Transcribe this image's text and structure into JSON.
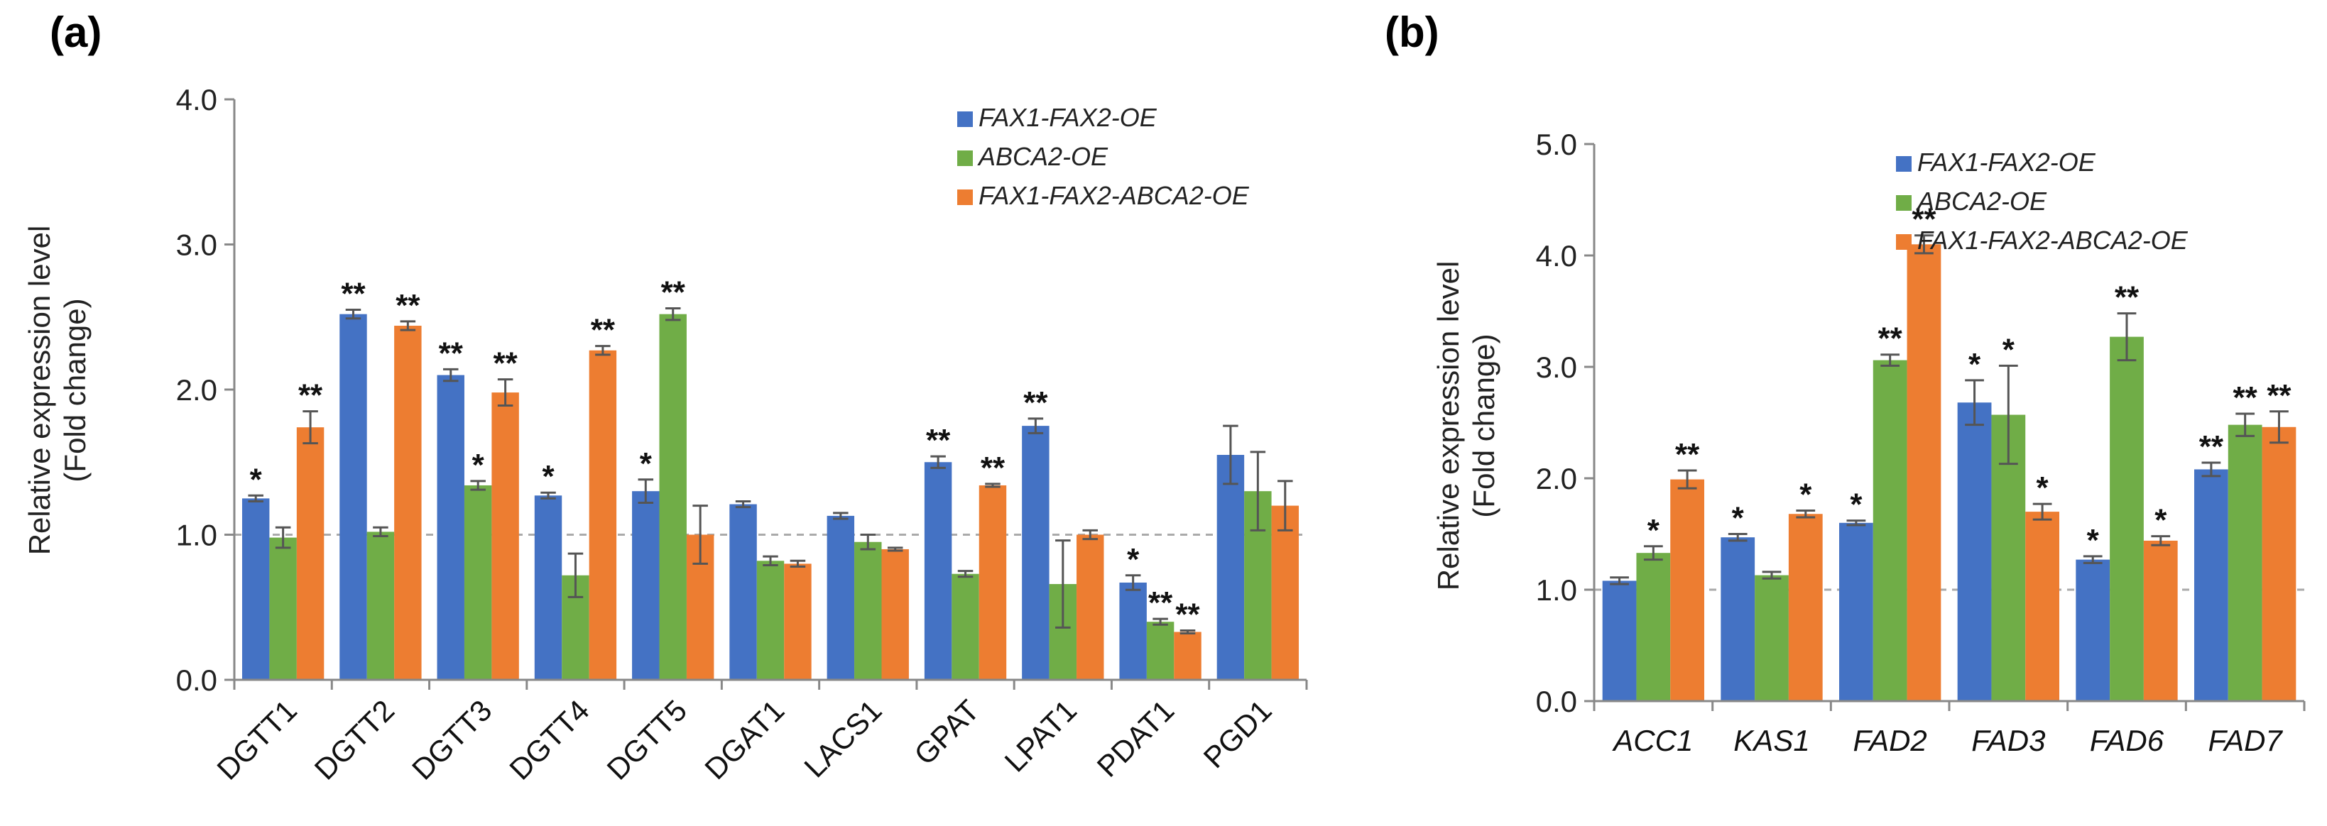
{
  "chart_data": [
    {
      "panel_label": "(a)",
      "type": "bar",
      "ylabel_lines": [
        "Relative expression level",
        "(Fold change)"
      ],
      "ylim": [
        0,
        4.0
      ],
      "yticks": [
        "0.0",
        "1.0",
        "2.0",
        "3.0",
        "4.0"
      ],
      "reference_line": 1.0,
      "italic_categories": false,
      "categories": [
        "DGTT1",
        "DGTT2",
        "DGTT3",
        "DGTT4",
        "DGTT5",
        "DGAT1",
        "LACS1",
        "GPAT",
        "LPAT1",
        "PDAT1",
        "PGD1"
      ],
      "legend": [
        "FAX1-FAX2-OE",
        "ABCA2-OE",
        "FAX1-FAX2-ABCA2-OE"
      ],
      "colors": [
        "#4472c4",
        "#70ad47",
        "#ed7d31"
      ],
      "series": [
        {
          "name": "FAX1-FAX2-OE",
          "values": [
            1.25,
            2.52,
            2.1,
            1.27,
            1.3,
            1.21,
            1.13,
            1.5,
            1.75,
            0.67,
            1.55
          ],
          "errors": [
            0.02,
            0.03,
            0.04,
            0.02,
            0.08,
            0.02,
            0.02,
            0.04,
            0.05,
            0.05,
            0.2
          ],
          "sig": [
            "*",
            "**",
            "**",
            "*",
            "*",
            "",
            "",
            "**",
            "**",
            "*",
            ""
          ]
        },
        {
          "name": "ABCA2-OE",
          "values": [
            0.98,
            1.02,
            1.34,
            0.72,
            2.52,
            0.82,
            0.95,
            0.73,
            0.66,
            0.4,
            1.3
          ],
          "errors": [
            0.07,
            0.03,
            0.03,
            0.15,
            0.04,
            0.03,
            0.05,
            0.02,
            0.3,
            0.02,
            0.27
          ],
          "sig": [
            "",
            "",
            "*",
            "",
            "**",
            "",
            "",
            "",
            "",
            "**",
            ""
          ]
        },
        {
          "name": "FAX1-FAX2-ABCA2-OE",
          "values": [
            1.74,
            2.44,
            1.98,
            2.27,
            1.0,
            0.8,
            0.9,
            1.34,
            1.0,
            0.33,
            1.2
          ],
          "errors": [
            0.11,
            0.03,
            0.09,
            0.03,
            0.2,
            0.02,
            0.01,
            0.01,
            0.03,
            0.01,
            0.17
          ],
          "sig": [
            "**",
            "**",
            "**",
            "**",
            "",
            "",
            "",
            "**",
            "",
            "**",
            ""
          ]
        }
      ]
    },
    {
      "panel_label": "(b)",
      "type": "bar",
      "ylabel_lines": [
        "Relative expression level",
        "(Fold change)"
      ],
      "ylim": [
        0,
        5.0
      ],
      "yticks": [
        "0.0",
        "1.0",
        "2.0",
        "3.0",
        "4.0",
        "5.0"
      ],
      "reference_line": 1.0,
      "italic_categories": true,
      "categories": [
        "ACC1",
        "KAS1",
        "FAD2",
        "FAD3",
        "FAD6",
        "FAD7"
      ],
      "legend": [
        "FAX1-FAX2-OE",
        "ABCA2-OE",
        "FAX1-FAX2-ABCA2-OE"
      ],
      "colors": [
        "#4472c4",
        "#70ad47",
        "#ed7d31"
      ],
      "series": [
        {
          "name": "FAX1-FAX2-OE",
          "values": [
            1.08,
            1.47,
            1.6,
            2.68,
            1.27,
            2.08
          ],
          "errors": [
            0.03,
            0.03,
            0.02,
            0.2,
            0.03,
            0.06
          ],
          "sig": [
            "",
            "*",
            "*",
            "*",
            "*",
            "**"
          ]
        },
        {
          "name": "ABCA2-OE",
          "values": [
            1.33,
            1.13,
            3.06,
            2.57,
            3.27,
            2.48
          ],
          "errors": [
            0.06,
            0.03,
            0.05,
            0.44,
            0.21,
            0.1
          ],
          "sig": [
            "*",
            "",
            "**",
            "*",
            "**",
            "**"
          ]
        },
        {
          "name": "FAX1-FAX2-ABCA2-OE",
          "values": [
            1.99,
            1.68,
            4.1,
            1.7,
            1.44,
            2.46
          ],
          "errors": [
            0.08,
            0.03,
            0.08,
            0.07,
            0.04,
            0.14
          ],
          "sig": [
            "**",
            "*",
            "**",
            "*",
            "*",
            "**"
          ]
        }
      ]
    }
  ]
}
